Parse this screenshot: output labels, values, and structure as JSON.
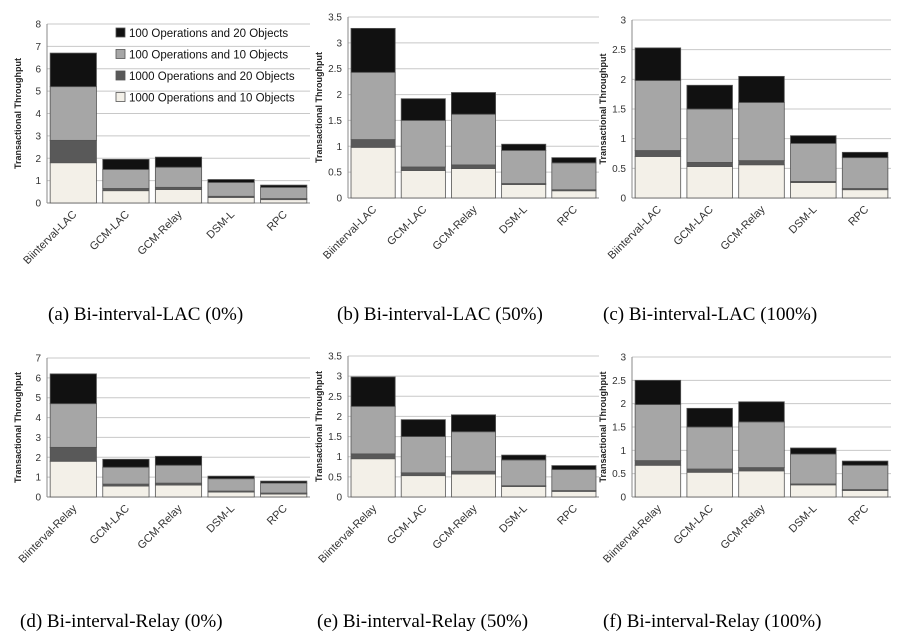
{
  "colors": {
    "s100_20": "#111111",
    "s100_10": "#a6a6a6",
    "s1000_20": "#595959",
    "s1000_10": "#f3f0e8",
    "grid": "#c8c8c8",
    "axis": "#888888",
    "bar_edge": "#555555"
  },
  "chart_data": [
    {
      "type": "bar",
      "stacked": true,
      "caption": "(a) Bi-interval-LAC (0%)",
      "ylabel": "Transactional Throughput",
      "ylim": [
        0,
        8
      ],
      "yticks": [
        0,
        1,
        2,
        3,
        4,
        5,
        6,
        7,
        8
      ],
      "categories": [
        "Biinterval-LAC",
        "GCM-LAC",
        "GCM-Relay",
        "DSM-L",
        "RPC"
      ],
      "legend": {
        "placement": "top-right",
        "order": [
          "100 Operations and 20 Objects",
          "100 Operations and 10 Objects",
          "1000 Operations and 20 Objects",
          "1000 Operations and 10 Objects"
        ]
      },
      "series": [
        {
          "name": "1000 Operations and 10 Objects",
          "color_key": "s1000_10",
          "values": [
            1.8,
            0.55,
            0.6,
            0.25,
            0.15
          ]
        },
        {
          "name": "1000 Operations and 20 Objects",
          "color_key": "s1000_20",
          "values": [
            1.0,
            0.1,
            0.1,
            0.05,
            0.05
          ]
        },
        {
          "name": "100 Operations and 10 Objects",
          "color_key": "s100_10",
          "values": [
            2.4,
            0.85,
            0.9,
            0.62,
            0.5
          ]
        },
        {
          "name": "100 Operations and 20 Objects",
          "color_key": "s100_20",
          "values": [
            1.5,
            0.45,
            0.45,
            0.13,
            0.1
          ]
        }
      ]
    },
    {
      "type": "bar",
      "stacked": true,
      "caption": "(b) Bi-interval-LAC (50%)",
      "ylabel": "Transactional Throughput",
      "ylim": [
        0,
        3.5
      ],
      "yticks": [
        0,
        0.5,
        1,
        1.5,
        2,
        2.5,
        3,
        3.5
      ],
      "categories": [
        "Biinterval-LAC",
        "GCM-LAC",
        "GCM-Relay",
        "DSM-L",
        "RPC"
      ],
      "series": [
        {
          "name": "1000 Operations and 10 Objects",
          "color_key": "s1000_10",
          "values": [
            0.98,
            0.53,
            0.57,
            0.26,
            0.14
          ]
        },
        {
          "name": "1000 Operations and 20 Objects",
          "color_key": "s1000_20",
          "values": [
            0.15,
            0.07,
            0.07,
            0.02,
            0.02
          ]
        },
        {
          "name": "100 Operations and 10 Objects",
          "color_key": "s100_10",
          "values": [
            1.3,
            0.9,
            0.98,
            0.64,
            0.52
          ]
        },
        {
          "name": "100 Operations and 20 Objects",
          "color_key": "s100_20",
          "values": [
            0.85,
            0.42,
            0.42,
            0.12,
            0.1
          ]
        }
      ]
    },
    {
      "type": "bar",
      "stacked": true,
      "caption": "(c) Bi-interval-LAC (100%)",
      "ylabel": "Transactional Throughput",
      "ylim": [
        0,
        3
      ],
      "yticks": [
        0,
        0.5,
        1,
        1.5,
        2,
        2.5,
        3
      ],
      "categories": [
        "Biinterval-LAC",
        "GCM-LAC",
        "GCM-Relay",
        "DSM-L",
        "RPC"
      ],
      "series": [
        {
          "name": "1000 Operations and 10 Objects",
          "color_key": "s1000_10",
          "values": [
            0.7,
            0.53,
            0.56,
            0.26,
            0.14
          ]
        },
        {
          "name": "1000 Operations and 20 Objects",
          "color_key": "s1000_20",
          "values": [
            0.1,
            0.07,
            0.07,
            0.02,
            0.02
          ]
        },
        {
          "name": "100 Operations and 10 Objects",
          "color_key": "s100_10",
          "values": [
            1.18,
            0.9,
            0.98,
            0.64,
            0.52
          ]
        },
        {
          "name": "100 Operations and 20 Objects",
          "color_key": "s100_20",
          "values": [
            0.55,
            0.4,
            0.44,
            0.13,
            0.09
          ]
        }
      ]
    },
    {
      "type": "bar",
      "stacked": true,
      "caption": "(d) Bi-interval-Relay (0%)",
      "ylabel": "Transactional Throughput",
      "ylim": [
        0,
        7
      ],
      "yticks": [
        0,
        1,
        2,
        3,
        4,
        5,
        6,
        7
      ],
      "categories": [
        "Biinterval-Relay",
        "GCM-LAC",
        "GCM-Relay",
        "DSM-L",
        "RPC"
      ],
      "series": [
        {
          "name": "1000 Operations and 10 Objects",
          "color_key": "s1000_10",
          "values": [
            1.8,
            0.55,
            0.6,
            0.25,
            0.15
          ]
        },
        {
          "name": "1000 Operations and 20 Objects",
          "color_key": "s1000_20",
          "values": [
            0.7,
            0.1,
            0.1,
            0.05,
            0.05
          ]
        },
        {
          "name": "100 Operations and 10 Objects",
          "color_key": "s100_10",
          "values": [
            2.2,
            0.85,
            0.9,
            0.62,
            0.5
          ]
        },
        {
          "name": "100 Operations and 20 Objects",
          "color_key": "s100_20",
          "values": [
            1.5,
            0.4,
            0.45,
            0.13,
            0.1
          ]
        }
      ]
    },
    {
      "type": "bar",
      "stacked": true,
      "caption": "(e) Bi-interval-Relay (50%)",
      "ylabel": "Transactional Throughput",
      "ylim": [
        0,
        3.5
      ],
      "yticks": [
        0,
        0.5,
        1,
        1.5,
        2,
        2.5,
        3,
        3.5
      ],
      "categories": [
        "Biinterval-Relay",
        "GCM-LAC",
        "GCM-Relay",
        "DSM-L",
        "RPC"
      ],
      "series": [
        {
          "name": "1000 Operations and 10 Objects",
          "color_key": "s1000_10",
          "values": [
            0.95,
            0.53,
            0.57,
            0.26,
            0.14
          ]
        },
        {
          "name": "1000 Operations and 20 Objects",
          "color_key": "s1000_20",
          "values": [
            0.12,
            0.07,
            0.07,
            0.02,
            0.02
          ]
        },
        {
          "name": "100 Operations and 10 Objects",
          "color_key": "s100_10",
          "values": [
            1.18,
            0.9,
            0.98,
            0.64,
            0.52
          ]
        },
        {
          "name": "100 Operations and 20 Objects",
          "color_key": "s100_20",
          "values": [
            0.73,
            0.42,
            0.42,
            0.12,
            0.1
          ]
        }
      ]
    },
    {
      "type": "bar",
      "stacked": true,
      "caption": "(f) Bi-interval-Relay (100%)",
      "ylabel": "Transactional Throughput",
      "ylim": [
        0,
        3
      ],
      "yticks": [
        0,
        0.5,
        1,
        1.5,
        2,
        2.5,
        3
      ],
      "categories": [
        "Biinterval-Relay",
        "GCM-LAC",
        "GCM-Relay",
        "DSM-L",
        "RPC"
      ],
      "series": [
        {
          "name": "1000 Operations and 10 Objects",
          "color_key": "s1000_10",
          "values": [
            0.68,
            0.53,
            0.56,
            0.26,
            0.14
          ]
        },
        {
          "name": "1000 Operations and 20 Objects",
          "color_key": "s1000_20",
          "values": [
            0.1,
            0.07,
            0.07,
            0.02,
            0.02
          ]
        },
        {
          "name": "100 Operations and 10 Objects",
          "color_key": "s100_10",
          "values": [
            1.2,
            0.9,
            0.98,
            0.64,
            0.52
          ]
        },
        {
          "name": "100 Operations and 20 Objects",
          "color_key": "s100_20",
          "values": [
            0.52,
            0.4,
            0.43,
            0.13,
            0.09
          ]
        }
      ]
    }
  ]
}
